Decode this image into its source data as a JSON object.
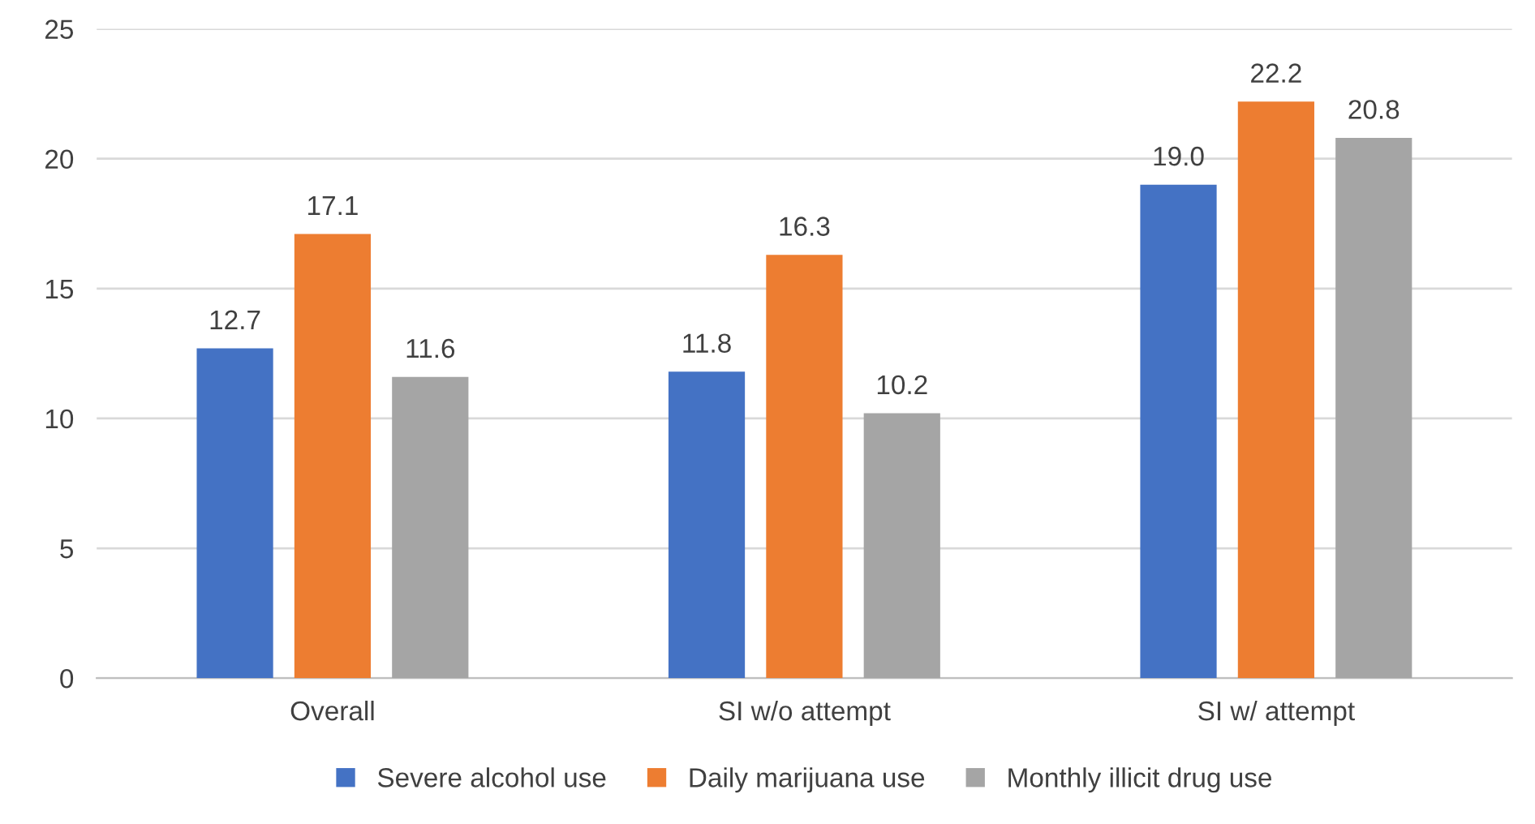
{
  "chart_data": {
    "type": "bar",
    "categories": [
      "Overall",
      "SI w/o attempt",
      "SI w/ attempt"
    ],
    "series": [
      {
        "name": "Severe alcohol use",
        "color": "#4472c4",
        "values": [
          12.7,
          11.8,
          19.0
        ],
        "value_labels": [
          "12.7",
          "11.8",
          "19.0"
        ]
      },
      {
        "name": "Daily marijuana use",
        "color": "#ed7d31",
        "values": [
          17.1,
          16.3,
          22.2
        ],
        "value_labels": [
          "17.1",
          "16.3",
          "22.2"
        ]
      },
      {
        "name": "Monthly illicit drug use",
        "color": "#a5a5a5",
        "values": [
          11.6,
          10.2,
          20.8
        ],
        "value_labels": [
          "11.6",
          "10.2",
          "20.8"
        ]
      }
    ],
    "ylim": [
      0,
      25
    ],
    "yticks": [
      0,
      5,
      10,
      15,
      20,
      25
    ],
    "grid": "y",
    "legend": "bottom"
  }
}
